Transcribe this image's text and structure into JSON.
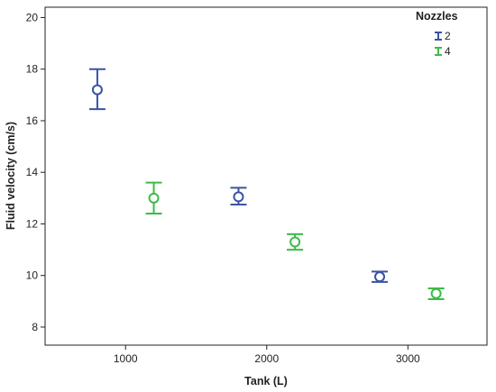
{
  "chart_data": {
    "type": "scatter",
    "title": "",
    "xlabel": "Tank (L)",
    "ylabel": "Fluid velocity (cm/s)",
    "xlim": [
      430,
      3560
    ],
    "ylim": [
      7.3,
      20.4
    ],
    "xticks": [
      1000,
      2000,
      3000
    ],
    "xtick_labels": [
      "1000",
      "2000",
      "3000"
    ],
    "yticks": [
      8,
      10,
      12,
      14,
      16,
      18,
      20
    ],
    "ytick_labels": [
      "8",
      "10",
      "12",
      "14",
      "16",
      "18",
      "20"
    ],
    "grid": false,
    "legend": {
      "title": "Nozzles",
      "placement": "top-right"
    },
    "series": [
      {
        "name": "2",
        "color": "#3a53a4",
        "points": [
          {
            "x": 800,
            "y": 17.2,
            "low": 16.45,
            "high": 18.0
          },
          {
            "x": 1800,
            "y": 13.05,
            "low": 12.75,
            "high": 13.4
          },
          {
            "x": 2800,
            "y": 9.95,
            "low": 9.75,
            "high": 10.15
          }
        ]
      },
      {
        "name": "4",
        "color": "#3dbb48",
        "points": [
          {
            "x": 1200,
            "y": 13.0,
            "low": 12.4,
            "high": 13.6
          },
          {
            "x": 2200,
            "y": 11.3,
            "low": 11.0,
            "high": 11.6
          },
          {
            "x": 3200,
            "y": 9.3,
            "low": 9.08,
            "high": 9.5
          }
        ]
      }
    ]
  }
}
